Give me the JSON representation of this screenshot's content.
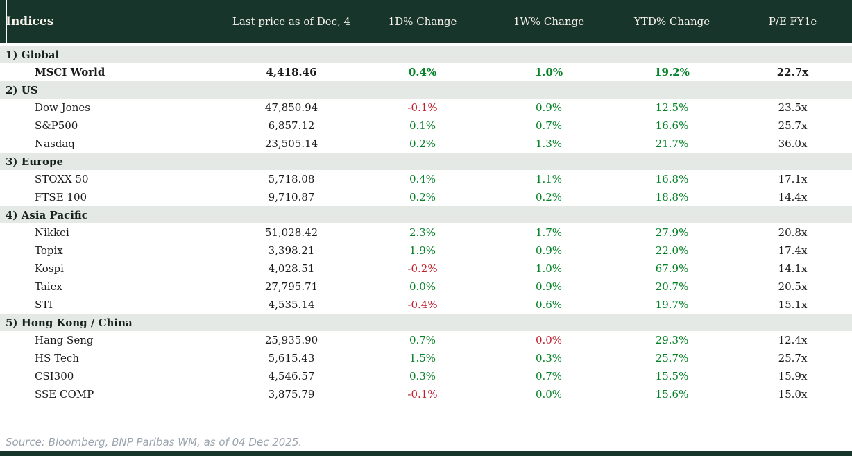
{
  "colors": {
    "header_bg": "#18352c",
    "header_text": "#f6f2ea",
    "section_bg": "#e4e9e5",
    "section_text": "#15231c",
    "body_text": "#1a1a1a",
    "pos": "#048226",
    "neg": "#bf1f2d",
    "source_text": "#9aa3ad"
  },
  "table": {
    "title": "Indices",
    "columns": [
      "Last price as of Dec, 4",
      "1D% Change",
      "1W% Change",
      "YTD% Change",
      "P/E FY1e"
    ],
    "sections": [
      {
        "label": "1) Global",
        "rows": [
          {
            "name": "MSCI World",
            "bold": true,
            "price": "4,418.46",
            "d1": "0.4%",
            "d1s": "pos",
            "w1": "1.0%",
            "w1s": "pos",
            "ytd": "19.2%",
            "ytds": "pos",
            "pe": "22.7x"
          }
        ]
      },
      {
        "label": "2) US",
        "rows": [
          {
            "name": "Dow Jones",
            "price": "47,850.94",
            "d1": "-0.1%",
            "d1s": "neg",
            "w1": "0.9%",
            "w1s": "pos",
            "ytd": "12.5%",
            "ytds": "pos",
            "pe": "23.5x"
          },
          {
            "name": "S&P500",
            "price": "6,857.12",
            "d1": "0.1%",
            "d1s": "pos",
            "w1": "0.7%",
            "w1s": "pos",
            "ytd": "16.6%",
            "ytds": "pos",
            "pe": "25.7x"
          },
          {
            "name": "Nasdaq",
            "price": "23,505.14",
            "d1": "0.2%",
            "d1s": "pos",
            "w1": "1.3%",
            "w1s": "pos",
            "ytd": "21.7%",
            "ytds": "pos",
            "pe": "36.0x"
          }
        ]
      },
      {
        "label": "3) Europe",
        "rows": [
          {
            "name": "STOXX 50",
            "price": "5,718.08",
            "d1": "0.4%",
            "d1s": "pos",
            "w1": "1.1%",
            "w1s": "pos",
            "ytd": "16.8%",
            "ytds": "pos",
            "pe": "17.1x"
          },
          {
            "name": "FTSE 100",
            "price": "9,710.87",
            "d1": "0.2%",
            "d1s": "pos",
            "w1": "0.2%",
            "w1s": "pos",
            "ytd": "18.8%",
            "ytds": "pos",
            "pe": "14.4x"
          }
        ]
      },
      {
        "label": "4) Asia Pacific",
        "rows": [
          {
            "name": "Nikkei",
            "price": "51,028.42",
            "d1": "2.3%",
            "d1s": "pos",
            "w1": "1.7%",
            "w1s": "pos",
            "ytd": "27.9%",
            "ytds": "pos",
            "pe": "20.8x"
          },
          {
            "name": "Topix",
            "price": "3,398.21",
            "d1": "1.9%",
            "d1s": "pos",
            "w1": "0.9%",
            "w1s": "pos",
            "ytd": "22.0%",
            "ytds": "pos",
            "pe": "17.4x"
          },
          {
            "name": "Kospi",
            "price": "4,028.51",
            "d1": "-0.2%",
            "d1s": "neg",
            "w1": "1.0%",
            "w1s": "pos",
            "ytd": "67.9%",
            "ytds": "pos",
            "pe": "14.1x"
          },
          {
            "name": "Taiex",
            "price": "27,795.71",
            "d1": "0.0%",
            "d1s": "pos",
            "w1": "0.9%",
            "w1s": "pos",
            "ytd": "20.7%",
            "ytds": "pos",
            "pe": "20.5x"
          },
          {
            "name": "STI",
            "price": "4,535.14",
            "d1": "-0.4%",
            "d1s": "neg",
            "w1": "0.6%",
            "w1s": "pos",
            "ytd": "19.7%",
            "ytds": "pos",
            "pe": "15.1x"
          }
        ]
      },
      {
        "label": "5) Hong Kong / China",
        "rows": [
          {
            "name": "Hang Seng",
            "price": "25,935.90",
            "d1": "0.7%",
            "d1s": "pos",
            "w1": "0.0%",
            "w1s": "neg",
            "ytd": "29.3%",
            "ytds": "pos",
            "pe": "12.4x"
          },
          {
            "name": "HS Tech",
            "price": "5,615.43",
            "d1": "1.5%",
            "d1s": "pos",
            "w1": "0.3%",
            "w1s": "pos",
            "ytd": "25.7%",
            "ytds": "pos",
            "pe": "25.7x"
          },
          {
            "name": "CSI300",
            "price": "4,546.57",
            "d1": "0.3%",
            "d1s": "pos",
            "w1": "0.7%",
            "w1s": "pos",
            "ytd": "15.5%",
            "ytds": "pos",
            "pe": "15.9x"
          },
          {
            "name": "SSE COMP",
            "price": "3,875.79",
            "d1": "-0.1%",
            "d1s": "neg",
            "w1": "0.0%",
            "w1s": "pos",
            "ytd": "15.6%",
            "ytds": "pos",
            "pe": "15.0x"
          }
        ]
      }
    ]
  },
  "footer": {
    "source": "Source: Bloomberg, BNP Paribas WM, as of 04 Dec 2025."
  },
  "chart_data": {
    "type": "table",
    "title": "Indices",
    "columns": [
      "Indices",
      "Last price as of Dec, 4",
      "1D% Change",
      "1W% Change",
      "YTD% Change",
      "P/E FY1e"
    ],
    "rows": [
      {
        "section": "1) Global",
        "index": "MSCI World",
        "last_price": 4418.46,
        "chg_1d_pct": 0.4,
        "chg_1w_pct": 1.0,
        "ytd_pct": 19.2,
        "pe_fy1e": 22.7
      },
      {
        "section": "2) US",
        "index": "Dow Jones",
        "last_price": 47850.94,
        "chg_1d_pct": -0.1,
        "chg_1w_pct": 0.9,
        "ytd_pct": 12.5,
        "pe_fy1e": 23.5
      },
      {
        "section": "2) US",
        "index": "S&P500",
        "last_price": 6857.12,
        "chg_1d_pct": 0.1,
        "chg_1w_pct": 0.7,
        "ytd_pct": 16.6,
        "pe_fy1e": 25.7
      },
      {
        "section": "2) US",
        "index": "Nasdaq",
        "last_price": 23505.14,
        "chg_1d_pct": 0.2,
        "chg_1w_pct": 1.3,
        "ytd_pct": 21.7,
        "pe_fy1e": 36.0
      },
      {
        "section": "3) Europe",
        "index": "STOXX 50",
        "last_price": 5718.08,
        "chg_1d_pct": 0.4,
        "chg_1w_pct": 1.1,
        "ytd_pct": 16.8,
        "pe_fy1e": 17.1
      },
      {
        "section": "3) Europe",
        "index": "FTSE 100",
        "last_price": 9710.87,
        "chg_1d_pct": 0.2,
        "chg_1w_pct": 0.2,
        "ytd_pct": 18.8,
        "pe_fy1e": 14.4
      },
      {
        "section": "4) Asia Pacific",
        "index": "Nikkei",
        "last_price": 51028.42,
        "chg_1d_pct": 2.3,
        "chg_1w_pct": 1.7,
        "ytd_pct": 27.9,
        "pe_fy1e": 20.8
      },
      {
        "section": "4) Asia Pacific",
        "index": "Topix",
        "last_price": 3398.21,
        "chg_1d_pct": 1.9,
        "chg_1w_pct": 0.9,
        "ytd_pct": 22.0,
        "pe_fy1e": 17.4
      },
      {
        "section": "4) Asia Pacific",
        "index": "Kospi",
        "last_price": 4028.51,
        "chg_1d_pct": -0.2,
        "chg_1w_pct": 1.0,
        "ytd_pct": 67.9,
        "pe_fy1e": 14.1
      },
      {
        "section": "4) Asia Pacific",
        "index": "Taiex",
        "last_price": 27795.71,
        "chg_1d_pct": 0.0,
        "chg_1w_pct": 0.9,
        "ytd_pct": 20.7,
        "pe_fy1e": 20.5
      },
      {
        "section": "4) Asia Pacific",
        "index": "STI",
        "last_price": 4535.14,
        "chg_1d_pct": -0.4,
        "chg_1w_pct": 0.6,
        "ytd_pct": 19.7,
        "pe_fy1e": 15.1
      },
      {
        "section": "5) Hong Kong / China",
        "index": "Hang Seng",
        "last_price": 25935.9,
        "chg_1d_pct": 0.7,
        "chg_1w_pct": 0.0,
        "ytd_pct": 29.3,
        "pe_fy1e": 12.4
      },
      {
        "section": "5) Hong Kong / China",
        "index": "HS Tech",
        "last_price": 5615.43,
        "chg_1d_pct": 1.5,
        "chg_1w_pct": 0.3,
        "ytd_pct": 25.7,
        "pe_fy1e": 25.7
      },
      {
        "section": "5) Hong Kong / China",
        "index": "CSI300",
        "last_price": 4546.57,
        "chg_1d_pct": 0.3,
        "chg_1w_pct": 0.7,
        "ytd_pct": 15.5,
        "pe_fy1e": 15.9
      },
      {
        "section": "5) Hong Kong / China",
        "index": "SSE COMP",
        "last_price": 3875.79,
        "chg_1d_pct": -0.1,
        "chg_1w_pct": 0.0,
        "ytd_pct": 15.6,
        "pe_fy1e": 15.0
      }
    ]
  }
}
